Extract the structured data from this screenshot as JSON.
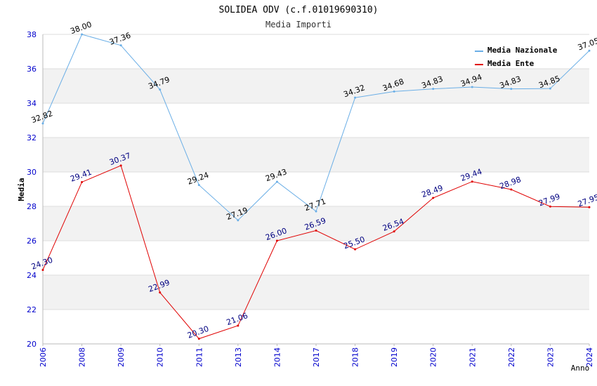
{
  "chart_data": {
    "type": "line",
    "title": "SOLIDEA ODV (c.f.01019690310)",
    "subtitle": "Media Importi",
    "xlabel": "Anno",
    "ylabel": "Media",
    "categories": [
      "2006",
      "2008",
      "2009",
      "2010",
      "2011",
      "2013",
      "2014",
      "2017",
      "2018",
      "2019",
      "2020",
      "2021",
      "2022",
      "2023",
      "2024"
    ],
    "ylim": [
      20,
      38
    ],
    "yticks": [
      20,
      22,
      24,
      26,
      28,
      30,
      32,
      34,
      36,
      38
    ],
    "legend_position": "top-right",
    "series": [
      {
        "name": "Media Nazionale",
        "color": "#6aaee6",
        "values": [
          32.82,
          38.0,
          37.36,
          34.79,
          29.24,
          27.19,
          29.43,
          27.71,
          34.32,
          34.68,
          34.83,
          34.94,
          34.83,
          34.85,
          37.05
        ],
        "labels": [
          "32.82",
          "38.00",
          "37.36",
          "34.79",
          "29.24",
          "27.19",
          "29.43",
          "27.71",
          "34.32",
          "34.68",
          "34.83",
          "34.94",
          "34.83",
          "34.85",
          "37.05"
        ]
      },
      {
        "name": "Media Ente",
        "color": "#e00000",
        "values": [
          24.3,
          29.41,
          30.37,
          22.99,
          20.3,
          21.06,
          26.0,
          26.59,
          25.5,
          26.54,
          28.49,
          29.44,
          28.98,
          27.99,
          27.95
        ],
        "labels": [
          "24.30",
          "29.41",
          "30.37",
          "22.99",
          "20.30",
          "21.06",
          "26.00",
          "26.59",
          "25.50",
          "26.54",
          "28.49",
          "29.44",
          "28.98",
          "27.99",
          "27.95"
        ]
      }
    ]
  }
}
